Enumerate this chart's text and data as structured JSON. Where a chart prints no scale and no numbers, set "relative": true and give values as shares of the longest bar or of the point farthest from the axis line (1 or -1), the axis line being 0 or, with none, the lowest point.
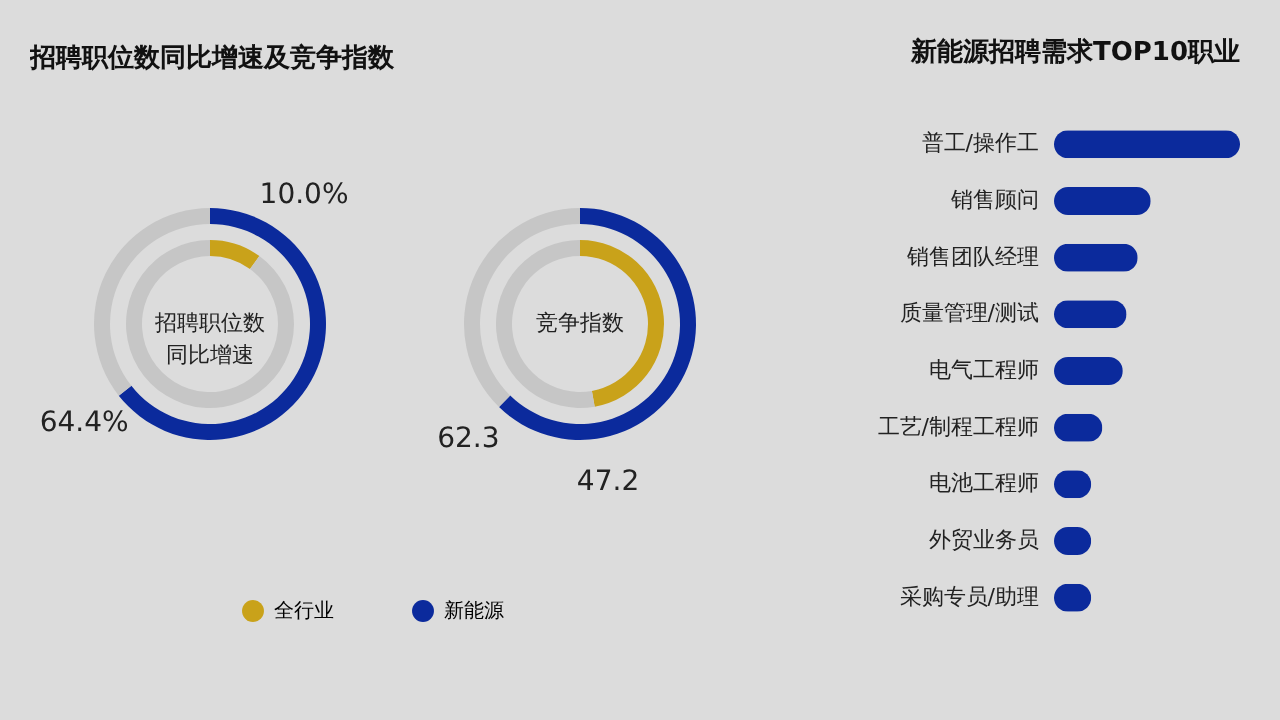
{
  "chart_data": [
    {
      "type": "donut",
      "title": "招聘职位数同比增速及竞争指数",
      "annotations": [
        "招聘职位数同比增速"
      ],
      "categories": [
        "新能源",
        null
      ],
      "values": [
        64.4,
        35.6
      ],
      "colors": [
        "#0b2a9c",
        "#c6c6c6"
      ],
      "value_labels": [
        "64.4%",
        null
      ],
      "legend": "bottom"
    },
    {
      "type": "donut",
      "categories": [
        "全行业",
        null
      ],
      "values": [
        10.0,
        90.0
      ],
      "colors": [
        "#c9a21a",
        "#c6c6c6"
      ],
      "value_labels": [
        "10.0%",
        null
      ],
      "legend": "bottom"
    },
    {
      "type": "donut",
      "annotations": [
        "竞争指数"
      ],
      "categories": [
        null,
        null
      ],
      "values": [
        62.3,
        37.7
      ],
      "colors": [
        "#0b2a9c",
        "#c6c6c6"
      ],
      "value_labels": [
        "62.3",
        null
      ]
    },
    {
      "type": "donut",
      "categories": [
        null,
        null
      ],
      "values": [
        47.2,
        52.8
      ],
      "colors": [
        "#c9a21a",
        "#c6c6c6"
      ],
      "value_labels": [
        "47.2",
        null
      ]
    },
    {
      "type": "bar",
      "title": "新能源招聘需求TOP10职业",
      "orientation": "horizontal",
      "relative": true,
      "categories": [
        "普工/操作工",
        "销售顾问",
        "销售团队经理",
        "质量管理/测试",
        "电气工程师",
        "工艺/制程工程师",
        "电池工程师",
        "外贸业务员",
        "采购专员/助理"
      ],
      "values": [
        1,
        0.52,
        0.45,
        0.39,
        0.37,
        0.26,
        0.2,
        0.2,
        0.2
      ],
      "color": "#0b2a9c"
    }
  ]
}
